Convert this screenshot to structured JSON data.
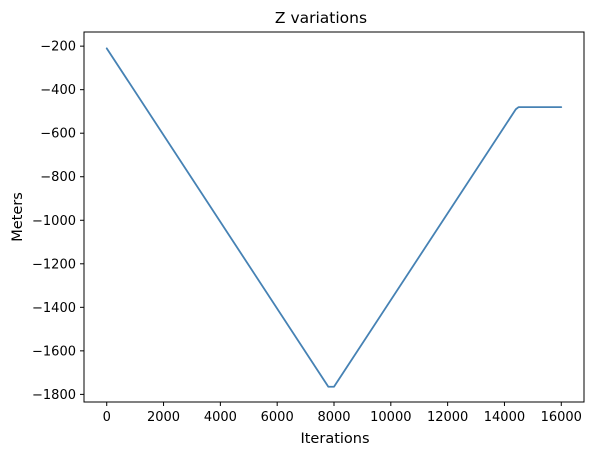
{
  "chart_data": {
    "type": "line",
    "title": "Z variations",
    "xlabel": "Iterations",
    "ylabel": "Meters",
    "xlim": [
      -800,
      16800
    ],
    "ylim": [
      -1835,
      -135
    ],
    "xticks": [
      0,
      2000,
      4000,
      6000,
      8000,
      10000,
      12000,
      14000,
      16000
    ],
    "xtick_labels": [
      "0",
      "2000",
      "4000",
      "6000",
      "8000",
      "10000",
      "12000",
      "14000",
      "16000"
    ],
    "yticks": [
      -200,
      -400,
      -600,
      -800,
      -1000,
      -1200,
      -1400,
      -1600,
      -1800
    ],
    "ytick_labels": [
      "−200",
      "−400",
      "−600",
      "−800",
      "−1000",
      "−1200",
      "−1400",
      "−1600",
      "−1800"
    ],
    "grid": false,
    "legend": "none",
    "series": [
      {
        "color": "#4682b4",
        "x": [
          0,
          7700,
          7800,
          8000,
          8100,
          14400,
          14500,
          16000
        ],
        "y": [
          -210,
          -1745,
          -1765,
          -1765,
          -1745,
          -490,
          -480,
          -480
        ]
      }
    ]
  }
}
